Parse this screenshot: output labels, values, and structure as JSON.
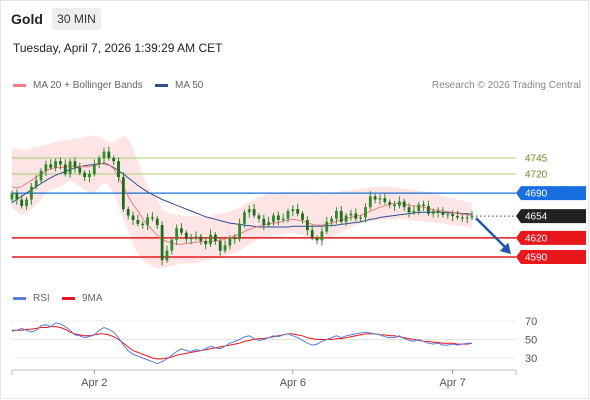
{
  "header": {
    "title": "Gold",
    "timeframe_label": "30 MIN",
    "datetime": "Tuesday, April 7, 2026 1:39:29 AM CET"
  },
  "legend": {
    "ma20_label": "MA 20 + Bollinger Bands",
    "ma50_label": "MA 50",
    "rsi_label": "RSI",
    "rsi_ma_label": "9MA",
    "credit": "Research © 2026 Trading Central"
  },
  "colors": {
    "ma20": "#f08080",
    "ma50": "#2f4f8f",
    "bollinger_fill": "#fde0e0",
    "candle": "#2e8b2e",
    "resistance_green": "#8bc34a",
    "pivot_blue": "#1a6fe0",
    "support_red": "#e8171b",
    "last_price_bg": "#222222",
    "rsi": "#5b7fd6",
    "rsi_ma": "#e8171b",
    "forecast_arrow": "#2456a8"
  },
  "chart_data": {
    "type": "candlestick",
    "instrument": "Gold",
    "timeframe": "30 MIN",
    "x_ticks": [
      "Apr 2",
      "Apr 6",
      "Apr 7"
    ],
    "levels": [
      {
        "value": 4745,
        "label": "4745",
        "kind": "resistance"
      },
      {
        "value": 4720,
        "label": "4720",
        "kind": "resistance"
      },
      {
        "value": 4690,
        "label": "4690",
        "kind": "pivot"
      },
      {
        "value": 4654,
        "label": "4654",
        "kind": "last_price"
      },
      {
        "value": 4620,
        "label": "4620",
        "kind": "support"
      },
      {
        "value": 4590,
        "label": "4590",
        "kind": "support"
      }
    ],
    "price_axis_ticks": [
      4745,
      4720,
      4690,
      4654,
      4620,
      4590
    ],
    "forecast": {
      "from": 4654,
      "to": 4590,
      "direction": "down"
    },
    "close": [
      4690,
      4680,
      4670,
      4680,
      4700,
      4710,
      4725,
      4735,
      4730,
      4740,
      4735,
      4720,
      4740,
      4730,
      4722,
      4715,
      4720,
      4735,
      4745,
      4755,
      4745,
      4740,
      4715,
      4665,
      4655,
      4648,
      4642,
      4640,
      4652,
      4650,
      4640,
      4585,
      4600,
      4617,
      4635,
      4628,
      4618,
      4620,
      4622,
      4615,
      4610,
      4625,
      4615,
      4600,
      4608,
      4620,
      4618,
      4642,
      4660,
      4665,
      4655,
      4650,
      4640,
      4645,
      4655,
      4648,
      4650,
      4662,
      4665,
      4658,
      4648,
      4632,
      4620,
      4616,
      4630,
      4645,
      4650,
      4662,
      4645,
      4655,
      4658,
      4650,
      4652,
      4668,
      4685,
      4680,
      4682,
      4676,
      4672,
      4670,
      4677,
      4668,
      4660,
      4662,
      4672,
      4670,
      4658,
      4662,
      4660,
      4656,
      4657,
      4654,
      4652,
      4651,
      4652,
      4654
    ],
    "ma20": [
      4700,
      4698,
      4700,
      4705,
      4710,
      4715,
      4720,
      4725,
      4728,
      4730,
      4730,
      4731,
      4732,
      4732,
      4732,
      4731,
      4731,
      4733,
      4735,
      4738,
      4735,
      4728,
      4715,
      4700,
      4685,
      4672,
      4662,
      4650,
      4640,
      4632,
      4624,
      4618,
      4614,
      4612,
      4610,
      4610,
      4611,
      4612,
      4613,
      4614,
      4614,
      4614,
      4615,
      4616,
      4618,
      4620,
      4623,
      4626,
      4630,
      4633,
      4636,
      4638,
      4640,
      4642,
      4643,
      4644,
      4646,
      4648,
      4649,
      4648,
      4646,
      4644,
      4641,
      4640,
      4640,
      4641,
      4643,
      4646,
      4648,
      4650,
      4652,
      4654,
      4655,
      4658,
      4662,
      4665,
      4668,
      4670,
      4672,
      4674,
      4674,
      4673,
      4671,
      4670,
      4669,
      4668,
      4666,
      4664,
      4663,
      4662,
      4661,
      4660,
      4658,
      4657,
      4656,
      4655
    ],
    "ma50": [
      4675,
      4680,
      4685,
      4690,
      4695,
      4700,
      4705,
      4710,
      4714,
      4718,
      4721,
      4724,
      4727,
      4729,
      4731,
      4733,
      4734,
      4735,
      4736,
      4736,
      4734,
      4730,
      4725,
      4720,
      4714,
      4708,
      4702,
      4697,
      4692,
      4688,
      4684,
      4680,
      4677,
      4674,
      4671,
      4668,
      4665,
      4662,
      4659,
      4656,
      4653,
      4651,
      4649,
      4647,
      4645,
      4643,
      4642,
      4641,
      4640,
      4639,
      4638,
      4637,
      4637,
      4637,
      4637,
      4637,
      4637,
      4637,
      4638,
      4638,
      4638,
      4638,
      4638,
      4638,
      4638,
      4639,
      4639,
      4640,
      4641,
      4642,
      4643,
      4644,
      4645,
      4647,
      4649,
      4650,
      4652,
      4653,
      4654,
      4655,
      4656,
      4657,
      4658,
      4659,
      4660,
      4660,
      4660,
      4660,
      4660,
      4660,
      4659,
      4659,
      4659,
      4658,
      4658,
      4657
    ],
    "bb_upper": [
      4760,
      4760,
      4758,
      4758,
      4760,
      4762,
      4764,
      4766,
      4768,
      4770,
      4772,
      4773,
      4774,
      4775,
      4776,
      4778,
      4779,
      4780,
      4778,
      4775,
      4770,
      4770,
      4775,
      4780,
      4775,
      4760,
      4740,
      4720,
      4700,
      4690,
      4680,
      4665,
      4660,
      4658,
      4656,
      4655,
      4654,
      4654,
      4654,
      4654,
      4654,
      4654,
      4656,
      4658,
      4660,
      4662,
      4664,
      4668,
      4672,
      4676,
      4680,
      4684,
      4686,
      4688,
      4690,
      4691,
      4692,
      4692,
      4692,
      4692,
      4692,
      4692,
      4692,
      4690,
      4688,
      4688,
      4690,
      4692,
      4693,
      4694,
      4695,
      4696,
      4697,
      4698,
      4699,
      4700,
      4700,
      4700,
      4700,
      4699,
      4698,
      4697,
      4696,
      4695,
      4694,
      4693,
      4692,
      4690,
      4688,
      4686,
      4684,
      4682,
      4680,
      4678,
      4676,
      4675
    ],
    "bb_lower": [
      4668,
      4660,
      4655,
      4658,
      4665,
      4672,
      4680,
      4690,
      4695,
      4698,
      4700,
      4705,
      4710,
      4705,
      4700,
      4695,
      4690,
      4692,
      4700,
      4705,
      4702,
      4690,
      4670,
      4650,
      4630,
      4610,
      4595,
      4585,
      4580,
      4576,
      4572,
      4572,
      4574,
      4576,
      4578,
      4580,
      4580,
      4580,
      4580,
      4582,
      4584,
      4586,
      4588,
      4590,
      4592,
      4594,
      4596,
      4600,
      4605,
      4610,
      4614,
      4618,
      4620,
      4622,
      4624,
      4625,
      4626,
      4627,
      4628,
      4626,
      4624,
      4620,
      4618,
      4617,
      4618,
      4620,
      4622,
      4625,
      4628,
      4632,
      4636,
      4640,
      4642,
      4644,
      4646,
      4647,
      4648,
      4648,
      4649,
      4649,
      4649,
      4649,
      4648,
      4647,
      4647,
      4646,
      4645,
      4644,
      4643,
      4642,
      4641,
      4640,
      4639,
      4638,
      4637,
      4636
    ],
    "rsi": {
      "axis_ticks": [
        70,
        50,
        30
      ],
      "ylim": [
        20,
        80
      ],
      "values": [
        59,
        60,
        62,
        60,
        58,
        60,
        65,
        66,
        64,
        68,
        67,
        64,
        60,
        55,
        54,
        52,
        53,
        55,
        60,
        63,
        61,
        58,
        52,
        44,
        38,
        34,
        32,
        30,
        28,
        26,
        24,
        26,
        29,
        33,
        37,
        40,
        38,
        37,
        39,
        38,
        40,
        43,
        41,
        40,
        43,
        46,
        48,
        50,
        53,
        54,
        51,
        49,
        50,
        52,
        54,
        53,
        55,
        56,
        54,
        52,
        49,
        46,
        44,
        45,
        48,
        50,
        52,
        54,
        52,
        54,
        55,
        56,
        57,
        58,
        57,
        56,
        55,
        53,
        52,
        52,
        54,
        51,
        49,
        48,
        50,
        48,
        46,
        45,
        46,
        44,
        44,
        45,
        44,
        45,
        46,
        46
      ],
      "ma_values": [
        60,
        60,
        60,
        61,
        61,
        62,
        63,
        63,
        64,
        64,
        63,
        61,
        58,
        56,
        55,
        54,
        54,
        55,
        56,
        56,
        55,
        53,
        50,
        46,
        42,
        38,
        36,
        34,
        32,
        30,
        29,
        29,
        30,
        31,
        33,
        34,
        35,
        36,
        37,
        38,
        39,
        40,
        41,
        42,
        43,
        44,
        45,
        46,
        48,
        49,
        50,
        51,
        51,
        52,
        53,
        54,
        55,
        56,
        56,
        55,
        54,
        52,
        51,
        50,
        50,
        50,
        50,
        51,
        51,
        52,
        53,
        54,
        55,
        56,
        56,
        56,
        55,
        55,
        54,
        54,
        53,
        52,
        51,
        50,
        49,
        48,
        48,
        47,
        47,
        46,
        46,
        46,
        45,
        45,
        45,
        46
      ]
    }
  }
}
